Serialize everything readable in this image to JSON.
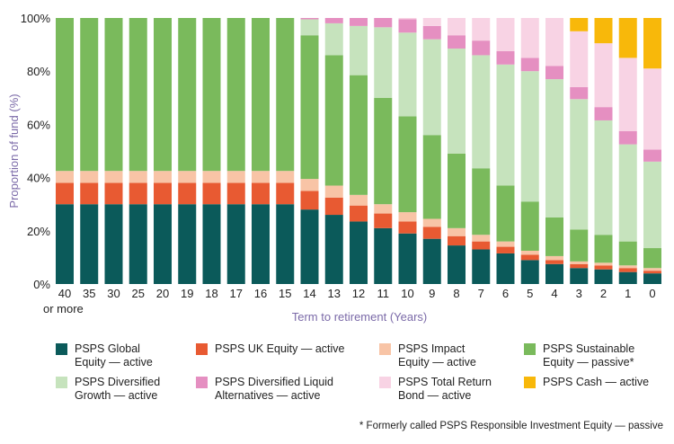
{
  "chart_data": {
    "type": "bar",
    "stacked": true,
    "ylabel": "Proportion of fund (%)",
    "xlabel": "Term to retirement (Years)",
    "ylim": [
      0,
      100
    ],
    "yticks": [
      "0%",
      "20%",
      "40%",
      "60%",
      "80%",
      "100%"
    ],
    "categories": [
      "40",
      "35",
      "30",
      "25",
      "20",
      "19",
      "18",
      "17",
      "16",
      "15",
      "14",
      "13",
      "12",
      "11",
      "10",
      "9",
      "8",
      "7",
      "6",
      "5",
      "4",
      "3",
      "2",
      "1",
      "0"
    ],
    "category_sublabel_first": "or more",
    "series": [
      {
        "name": "PSPS Global Equity — active",
        "color": "#0b5a5a",
        "values": [
          30,
          30,
          30,
          30,
          30,
          30,
          30,
          30,
          30,
          30,
          28,
          26,
          23.5,
          21,
          19,
          17,
          14.5,
          13,
          11.5,
          9,
          7.5,
          6,
          5.5,
          4.5,
          4
        ]
      },
      {
        "name": "PSPS UK Equity — active",
        "color": "#e85a32",
        "values": [
          8,
          8,
          8,
          8,
          8,
          8,
          8,
          8,
          8,
          8,
          7,
          6.5,
          6,
          5.5,
          4.5,
          4.5,
          3.5,
          3,
          2.5,
          2,
          1.5,
          1.5,
          1.5,
          1.5,
          1
        ]
      },
      {
        "name": "PSPS Impact Equity — active",
        "color": "#f8c4a6",
        "values": [
          4.5,
          4.5,
          4.5,
          4.5,
          4.5,
          4.5,
          4.5,
          4.5,
          4.5,
          4.5,
          4.5,
          4.5,
          4,
          3.5,
          3.5,
          3,
          3,
          2.5,
          2,
          1.5,
          1.5,
          1,
          1,
          1,
          1
        ]
      },
      {
        "name": "PSPS Sustainable Equity — passive*",
        "color": "#7aba5c",
        "values": [
          57.5,
          57.5,
          57.5,
          57.5,
          57.5,
          57.5,
          57.5,
          57.5,
          57.5,
          57.5,
          54,
          49,
          45,
          40,
          36,
          31.5,
          28,
          25,
          21,
          18.5,
          14.5,
          12,
          10.5,
          9,
          7.5
        ]
      },
      {
        "name": "PSPS Diversified Growth — active",
        "color": "#c6e3bd",
        "values": [
          0,
          0,
          0,
          0,
          0,
          0,
          0,
          0,
          0,
          0,
          6,
          12,
          18.5,
          26.5,
          31.5,
          36,
          39.5,
          42.5,
          45.5,
          49,
          52,
          49,
          43,
          36.5,
          32.5
        ]
      },
      {
        "name": "PSPS Diversified Liquid Alternatives — active",
        "color": "#e58fc1",
        "values": [
          0,
          0,
          0,
          0,
          0,
          0,
          0,
          0,
          0,
          0,
          0.5,
          2,
          3,
          3.5,
          5,
          5,
          5,
          5.5,
          5,
          5,
          5,
          4.5,
          5,
          5,
          4.5
        ]
      },
      {
        "name": "PSPS Total Return Bond — active",
        "color": "#f8d3e4",
        "values": [
          0,
          0,
          0,
          0,
          0,
          0,
          0,
          0,
          0,
          0,
          0,
          0,
          0,
          0,
          0.5,
          3,
          6.5,
          8.5,
          12.5,
          15,
          18,
          21,
          24,
          27.5,
          30.5
        ]
      },
      {
        "name": "PSPS Cash — active",
        "color": "#f8b80a",
        "values": [
          0,
          0,
          0,
          0,
          0,
          0,
          0,
          0,
          0,
          0,
          0,
          0,
          0,
          0,
          0,
          0,
          0,
          0,
          0,
          0,
          0,
          5,
          9.5,
          15,
          19
        ]
      }
    ],
    "footnote": "* Formerly called PSPS Responsible Investment Equity — passive"
  },
  "legend_items": [
    {
      "line1": "PSPS Global",
      "line2": "Equity — active",
      "color": "#0b5a5a"
    },
    {
      "line1": "PSPS UK Equity — active",
      "line2": "",
      "color": "#e85a32"
    },
    {
      "line1": "PSPS Impact",
      "line2": "Equity — active",
      "color": "#f8c4a6"
    },
    {
      "line1": "PSPS Sustainable",
      "line2": "Equity — passive*",
      "color": "#7aba5c"
    },
    {
      "line1": "PSPS Diversified",
      "line2": "Growth — active",
      "color": "#c6e3bd"
    },
    {
      "line1": "PSPS Diversified Liquid",
      "line2": "Alternatives — active",
      "color": "#e58fc1"
    },
    {
      "line1": "PSPS Total Return",
      "line2": "Bond — active",
      "color": "#f8d3e4"
    },
    {
      "line1": "PSPS Cash — active",
      "line2": "",
      "color": "#f8b80a"
    }
  ]
}
